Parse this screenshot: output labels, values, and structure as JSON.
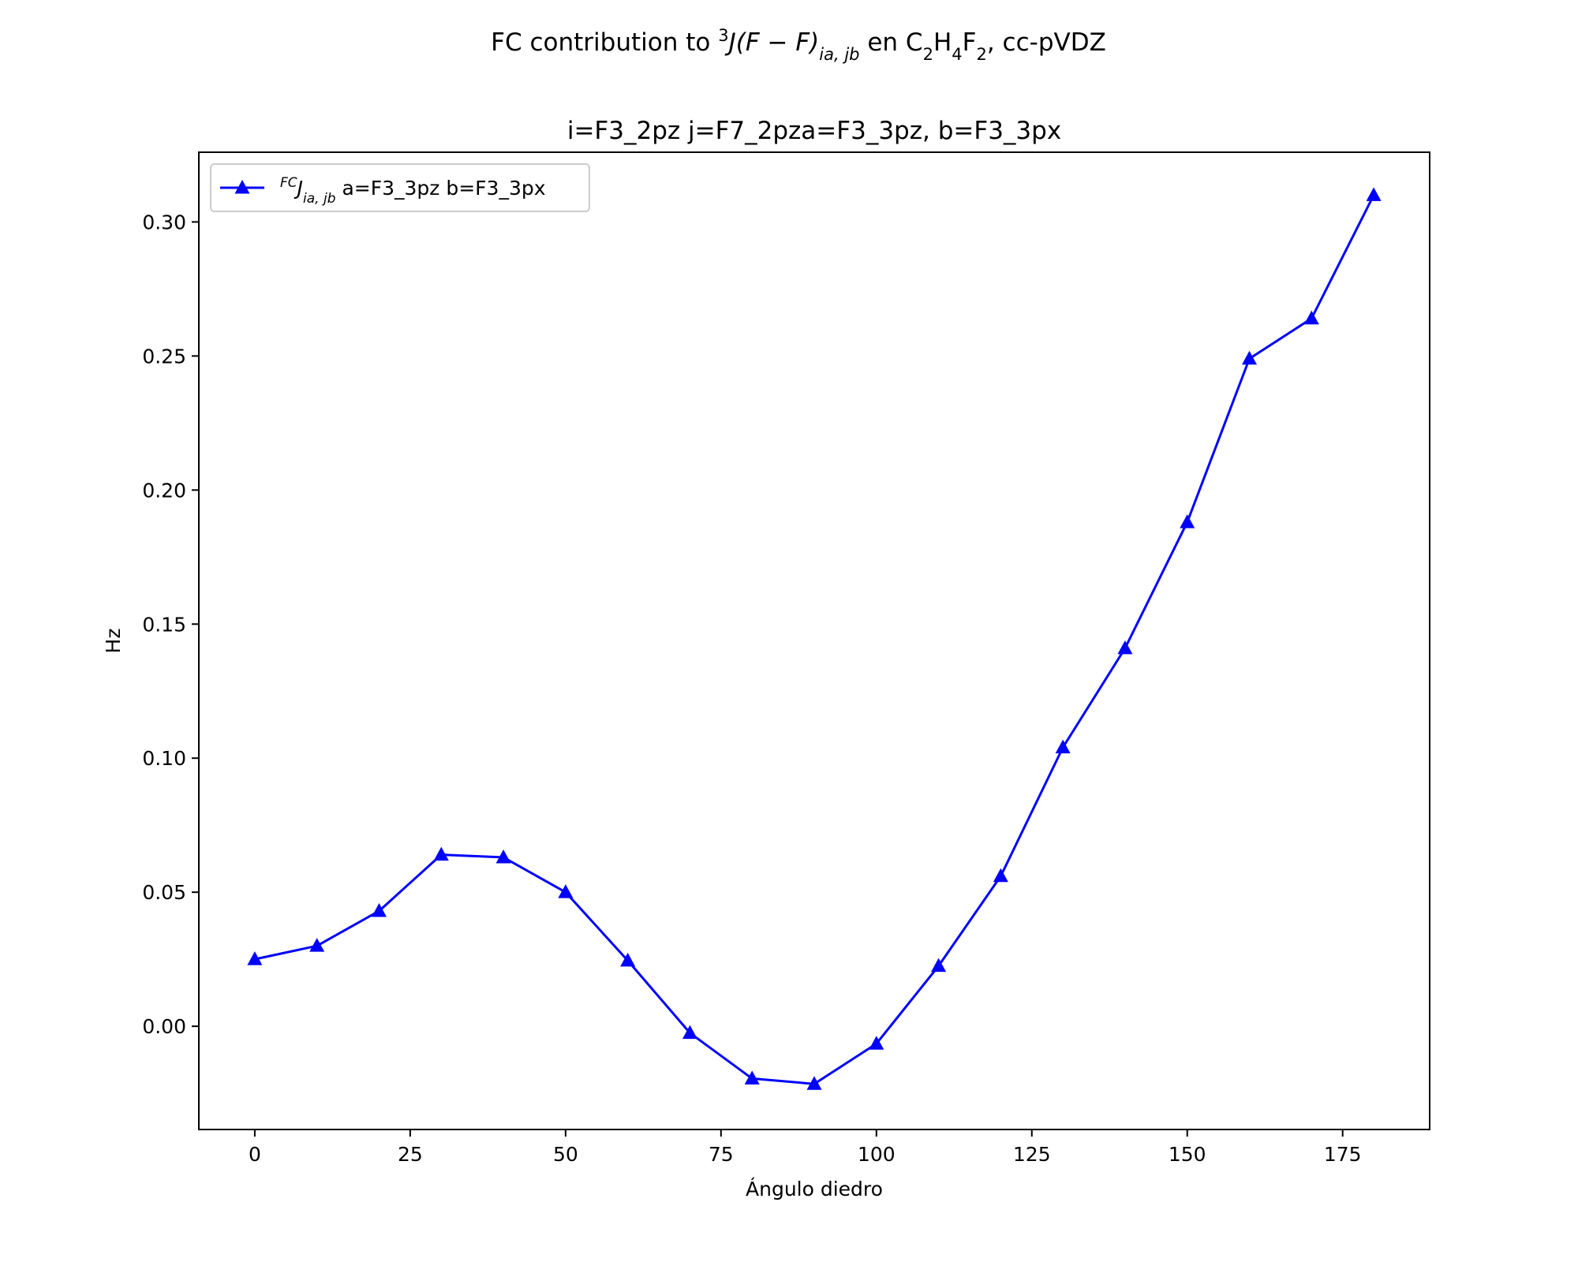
{
  "chart_data": {
    "type": "line",
    "suptitle": {
      "prefix": "FC contribution to ",
      "sup": "3",
      "jexpr": "J(F − F)",
      "jsub": "ia, jb",
      "en": " en C",
      "c_sub": "2",
      "h": "H",
      "h_sub": "4",
      "f": "F",
      "f_sub": "2",
      "suffix": ", cc-pVDZ"
    },
    "title": "i=F3_2pz  j=F7_2pza=F3_3pz, b=F3_3px",
    "xlabel": "Ángulo diedro",
    "ylabel": "Hz",
    "xlim": [
      -9,
      189
    ],
    "ylim": [
      -0.0385,
      0.326
    ],
    "xticks": [
      0,
      25,
      50,
      75,
      100,
      125,
      150,
      175
    ],
    "xtick_labels": [
      "0",
      "25",
      "50",
      "75",
      "100",
      "125",
      "150",
      "175"
    ],
    "yticks": [
      0.0,
      0.05,
      0.1,
      0.15,
      0.2,
      0.25,
      0.3
    ],
    "ytick_labels": [
      "0.00",
      "0.05",
      "0.10",
      "0.15",
      "0.20",
      "0.25",
      "0.30"
    ],
    "grid": false,
    "legend_position": "upper-left",
    "series": [
      {
        "legend": {
          "sup": "FC",
          "j": "J",
          "sub": "ia, jb",
          "rest": " a=F3_3pz b=F3_3px"
        },
        "color": "#0000ff",
        "marker": "triangle-up",
        "x": [
          0,
          10,
          20,
          30,
          40,
          50,
          60,
          70,
          80,
          90,
          100,
          110,
          120,
          130,
          140,
          150,
          160,
          170,
          180
        ],
        "y": [
          0.025,
          0.03,
          0.043,
          0.064,
          0.063,
          0.05,
          0.0245,
          -0.0025,
          -0.0195,
          -0.0215,
          -0.0065,
          0.0225,
          0.056,
          0.104,
          0.141,
          0.188,
          0.249,
          0.264,
          0.31
        ]
      }
    ]
  }
}
